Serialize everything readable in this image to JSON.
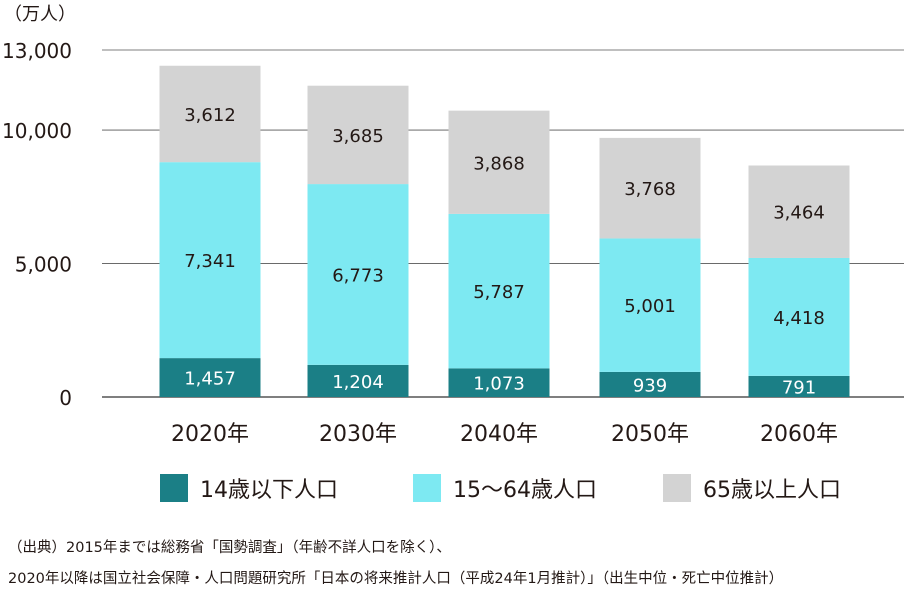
{
  "unit_label": "（万人）",
  "chart_data": {
    "type": "bar",
    "stacked": true,
    "categories": [
      "2020年",
      "2030年",
      "2040年",
      "2050年",
      "2060年"
    ],
    "series": [
      {
        "name": "14歳以下人口",
        "color": "#1b7f86",
        "label_color": "#ffffff",
        "values": [
          1457,
          1204,
          1073,
          939,
          791
        ]
      },
      {
        "name": "15～64歳人口",
        "color": "#7de9f2",
        "label_color": "#231815",
        "values": [
          7341,
          6773,
          5787,
          5001,
          4418
        ]
      },
      {
        "name": "65歳以上人口",
        "color": "#d3d3d3",
        "label_color": "#231815",
        "values": [
          3612,
          3685,
          3868,
          3768,
          3464
        ]
      }
    ],
    "yticks": [
      0,
      5000,
      10000,
      13000
    ],
    "ytick_labels": [
      "0",
      "5,000",
      "10,000",
      "13,000"
    ],
    "ylim": [
      0,
      13000
    ],
    "grid": true,
    "legend_position": "bottom"
  },
  "source_lines": [
    "（出典）2015年までは総務省「国勢調査」（年齢不詳人口を除く）、",
    "2020年以降は国立社会保障・人口問題研究所「日本の将来推計人口（平成24年1月推計）」（出生中位・死亡中位推計）"
  ]
}
